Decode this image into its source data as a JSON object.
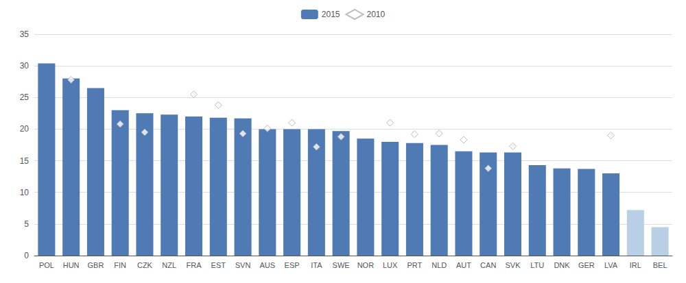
{
  "chart_data": {
    "type": "bar",
    "categories": [
      "POL",
      "HUN",
      "GBR",
      "FIN",
      "CZK",
      "NZL",
      "FRA",
      "EST",
      "SVN",
      "AUS",
      "ESP",
      "ITA",
      "SWE",
      "NOR",
      "LUX",
      "PRT",
      "NLD",
      "AUT",
      "CAN",
      "SVK",
      "LTU",
      "DNK",
      "GER",
      "LVA",
      "IRL",
      "BEL"
    ],
    "series": [
      {
        "name": "2015",
        "type": "bar",
        "color": "#4f7ab3",
        "colors": [
          "#4f7ab3",
          "#4f7ab3",
          "#4f7ab3",
          "#4f7ab3",
          "#4f7ab3",
          "#4f7ab3",
          "#4f7ab3",
          "#4f7ab3",
          "#4f7ab3",
          "#4f7ab3",
          "#4f7ab3",
          "#4f7ab3",
          "#4f7ab3",
          "#4f7ab3",
          "#4f7ab3",
          "#4f7ab3",
          "#4f7ab3",
          "#4f7ab3",
          "#4f7ab3",
          "#4f7ab3",
          "#4f7ab3",
          "#4f7ab3",
          "#4f7ab3",
          "#4f7ab3",
          "#b8cfe6",
          "#b8cfe6"
        ],
        "values": [
          30.4,
          28.0,
          26.5,
          23.0,
          22.5,
          22.3,
          22.0,
          21.8,
          21.7,
          20.0,
          20.0,
          20.0,
          19.7,
          18.5,
          18.0,
          17.8,
          17.5,
          16.5,
          16.3,
          16.3,
          14.3,
          13.8,
          13.7,
          13.0,
          7.2,
          4.5
        ]
      },
      {
        "name": "2010",
        "type": "scatter",
        "marker": "diamond",
        "color": "#ffffff",
        "values": [
          null,
          27.8,
          null,
          20.8,
          19.5,
          null,
          25.5,
          23.8,
          19.3,
          20.1,
          21.0,
          17.2,
          18.8,
          null,
          21.0,
          19.2,
          19.3,
          18.3,
          13.8,
          17.3,
          null,
          null,
          null,
          19.0,
          null,
          null
        ]
      }
    ],
    "ylim": [
      0,
      35
    ],
    "yticks": [
      0,
      5,
      10,
      15,
      20,
      25,
      30,
      35
    ],
    "grid": true,
    "legend": "top"
  }
}
